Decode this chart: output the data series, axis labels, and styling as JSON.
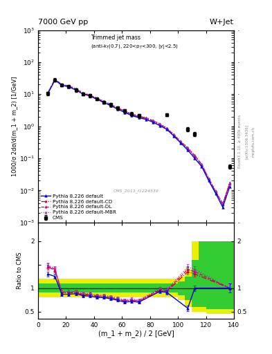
{
  "title_top": "7000 GeV pp",
  "title_right": "W+Jet",
  "annotation": "Trimmed jet mass (anti-k_{T}(0.7), 220<p_{T}<300, |y|<2.5)",
  "cms_label": "CMS_2013_I1224539",
  "rivet_label": "Rivet 3.1.10, ≥ 400k events",
  "arxiv_label": "[arXiv:1306.3436]",
  "mcplots_label": "mcplots.cern.ch",
  "xlabel": "(m_1 + m_2) / 2 [GeV]",
  "ylabel_main": "1000/σ 2dσ/d(m_1 + m_2) [1/GeV]",
  "ylabel_ratio": "Ratio to CMS",
  "xlim": [
    0,
    140
  ],
  "ylim_main": [
    0.001,
    1000.0
  ],
  "ylim_ratio": [
    0.35,
    2.4
  ],
  "x_data": [
    7,
    12,
    17,
    22,
    27,
    32,
    37,
    42,
    47,
    52,
    57,
    62,
    67,
    72,
    77,
    87,
    92,
    107,
    112,
    137
  ],
  "cms_y": [
    10.5,
    28,
    19.5,
    17.5,
    13.5,
    10.2,
    9.0,
    7.2,
    5.7,
    4.7,
    3.7,
    3.0,
    2.45,
    2.15,
    null,
    null,
    2.3,
    0.82,
    0.58,
    0.055
  ],
  "cms_yerr_lo": [
    1.2,
    3.0,
    2.0,
    2.0,
    1.5,
    1.2,
    1.0,
    0.8,
    0.6,
    0.5,
    0.4,
    0.35,
    0.28,
    0.25,
    null,
    null,
    0.28,
    0.12,
    0.08,
    0.008
  ],
  "cms_yerr_hi": [
    1.2,
    3.0,
    2.0,
    2.0,
    1.5,
    1.2,
    1.0,
    0.8,
    0.6,
    0.5,
    0.4,
    0.35,
    0.28,
    0.25,
    null,
    null,
    0.28,
    0.12,
    0.08,
    0.008
  ],
  "pythia_default_x": [
    7,
    12,
    17,
    22,
    27,
    32,
    37,
    42,
    47,
    52,
    57,
    62,
    67,
    72,
    77,
    82,
    87,
    92,
    97,
    102,
    107,
    112,
    117,
    122,
    127,
    132,
    137
  ],
  "pythia_default_y": [
    10.5,
    27.5,
    19.0,
    17.0,
    13.5,
    10.2,
    8.8,
    7.0,
    5.5,
    4.4,
    3.4,
    2.7,
    2.15,
    1.85,
    1.65,
    1.35,
    1.05,
    0.8,
    0.5,
    0.3,
    0.18,
    0.1,
    0.055,
    0.02,
    0.008,
    0.003,
    0.013
  ],
  "pythia_cd_x": [
    7,
    12,
    17,
    22,
    27,
    32,
    37,
    42,
    47,
    52,
    57,
    62,
    67,
    72,
    77,
    82,
    87,
    92,
    97,
    102,
    107,
    112,
    117,
    122,
    127,
    132,
    137
  ],
  "pythia_cd_y": [
    10.9,
    28.5,
    19.5,
    17.5,
    14.0,
    10.5,
    9.0,
    7.2,
    5.7,
    4.6,
    3.6,
    2.85,
    2.3,
    1.98,
    1.77,
    1.45,
    1.13,
    0.84,
    0.53,
    0.32,
    0.2,
    0.115,
    0.062,
    0.022,
    0.009,
    0.0036,
    0.016
  ],
  "pythia_dl_x": [
    7,
    12,
    17,
    22,
    27,
    32,
    37,
    42,
    47,
    52,
    57,
    62,
    67,
    72,
    77,
    82,
    87,
    92,
    97,
    102,
    107,
    112,
    117,
    122,
    127,
    132,
    137
  ],
  "pythia_dl_y": [
    11.0,
    29.0,
    20.0,
    18.0,
    14.5,
    10.9,
    9.3,
    7.4,
    5.9,
    4.7,
    3.7,
    2.95,
    2.38,
    2.05,
    1.83,
    1.5,
    1.17,
    0.87,
    0.55,
    0.33,
    0.21,
    0.12,
    0.065,
    0.023,
    0.009,
    0.0038,
    0.017
  ],
  "pythia_mbr_x": [
    7,
    12,
    17,
    22,
    27,
    32,
    37,
    42,
    47,
    52,
    57,
    62,
    67,
    72,
    77,
    82,
    87,
    92,
    97,
    102,
    107,
    112,
    117,
    122,
    127,
    132,
    137
  ],
  "pythia_mbr_y": [
    11.2,
    29.5,
    20.5,
    18.5,
    15.0,
    11.3,
    9.6,
    7.7,
    6.1,
    4.9,
    3.8,
    3.05,
    2.45,
    2.11,
    1.89,
    1.55,
    1.21,
    0.9,
    0.57,
    0.34,
    0.22,
    0.125,
    0.068,
    0.024,
    0.0095,
    0.004,
    0.018
  ],
  "ratio_x": [
    7,
    12,
    17,
    22,
    27,
    32,
    37,
    42,
    47,
    52,
    57,
    62,
    67,
    72,
    87,
    92,
    107,
    112,
    137
  ],
  "ratio_default": [
    1.3,
    1.25,
    0.87,
    0.87,
    0.88,
    0.84,
    0.83,
    0.8,
    0.8,
    0.77,
    0.74,
    0.7,
    0.72,
    0.7,
    0.93,
    0.91,
    0.57,
    1.0,
    1.0
  ],
  "ratio_cd": [
    1.45,
    1.38,
    0.9,
    0.9,
    0.9,
    0.86,
    0.86,
    0.82,
    0.82,
    0.79,
    0.76,
    0.72,
    0.74,
    0.72,
    0.95,
    0.93,
    1.35,
    1.3,
    1.0
  ],
  "ratio_dl": [
    1.47,
    1.4,
    0.91,
    0.91,
    0.92,
    0.87,
    0.87,
    0.83,
    0.83,
    0.8,
    0.77,
    0.73,
    0.75,
    0.73,
    0.97,
    0.95,
    1.4,
    1.35,
    1.0
  ],
  "ratio_mbr": [
    1.49,
    1.42,
    0.93,
    0.93,
    0.94,
    0.89,
    0.89,
    0.85,
    0.85,
    0.82,
    0.79,
    0.75,
    0.77,
    0.75,
    0.99,
    0.97,
    1.45,
    1.4,
    1.0
  ],
  "ratio_default_err": [
    0.05,
    0.05,
    0.03,
    0.03,
    0.03,
    0.03,
    0.03,
    0.03,
    0.03,
    0.03,
    0.03,
    0.03,
    0.03,
    0.03,
    0.04,
    0.04,
    0.06,
    0.06,
    0.1
  ],
  "ratio_cd_err": [
    0.05,
    0.05,
    0.03,
    0.03,
    0.03,
    0.03,
    0.03,
    0.03,
    0.03,
    0.03,
    0.03,
    0.03,
    0.03,
    0.03,
    0.04,
    0.04,
    0.06,
    0.06,
    0.1
  ],
  "band_steps": [
    [
      0,
      5,
      0.9,
      1.1,
      0.8,
      1.2
    ],
    [
      5,
      10,
      0.9,
      1.1,
      0.8,
      1.2
    ],
    [
      10,
      20,
      0.9,
      1.1,
      0.8,
      1.2
    ],
    [
      20,
      30,
      0.9,
      1.1,
      0.8,
      1.2
    ],
    [
      30,
      40,
      0.9,
      1.1,
      0.8,
      1.2
    ],
    [
      40,
      50,
      0.9,
      1.1,
      0.8,
      1.2
    ],
    [
      50,
      60,
      0.9,
      1.1,
      0.8,
      1.2
    ],
    [
      60,
      70,
      0.9,
      1.1,
      0.8,
      1.2
    ],
    [
      70,
      80,
      0.9,
      1.1,
      0.8,
      1.2
    ],
    [
      80,
      90,
      0.9,
      1.1,
      0.8,
      1.2
    ],
    [
      90,
      100,
      0.9,
      1.1,
      0.8,
      1.2
    ],
    [
      100,
      105,
      0.85,
      1.15,
      0.75,
      1.25
    ],
    [
      105,
      110,
      0.75,
      1.25,
      0.6,
      1.4
    ],
    [
      110,
      115,
      0.6,
      1.6,
      0.5,
      2.0
    ],
    [
      115,
      120,
      0.6,
      2.0,
      0.5,
      2.0
    ],
    [
      120,
      130,
      0.55,
      2.0,
      0.45,
      2.0
    ],
    [
      130,
      140,
      0.55,
      2.0,
      0.45,
      2.0
    ]
  ],
  "color_default": "#0000dd",
  "color_cd": "#cc0033",
  "color_dl": "#cc0077",
  "color_mbr": "#9933aa",
  "color_green": "#33cc33",
  "color_yellow": "#eeee00"
}
